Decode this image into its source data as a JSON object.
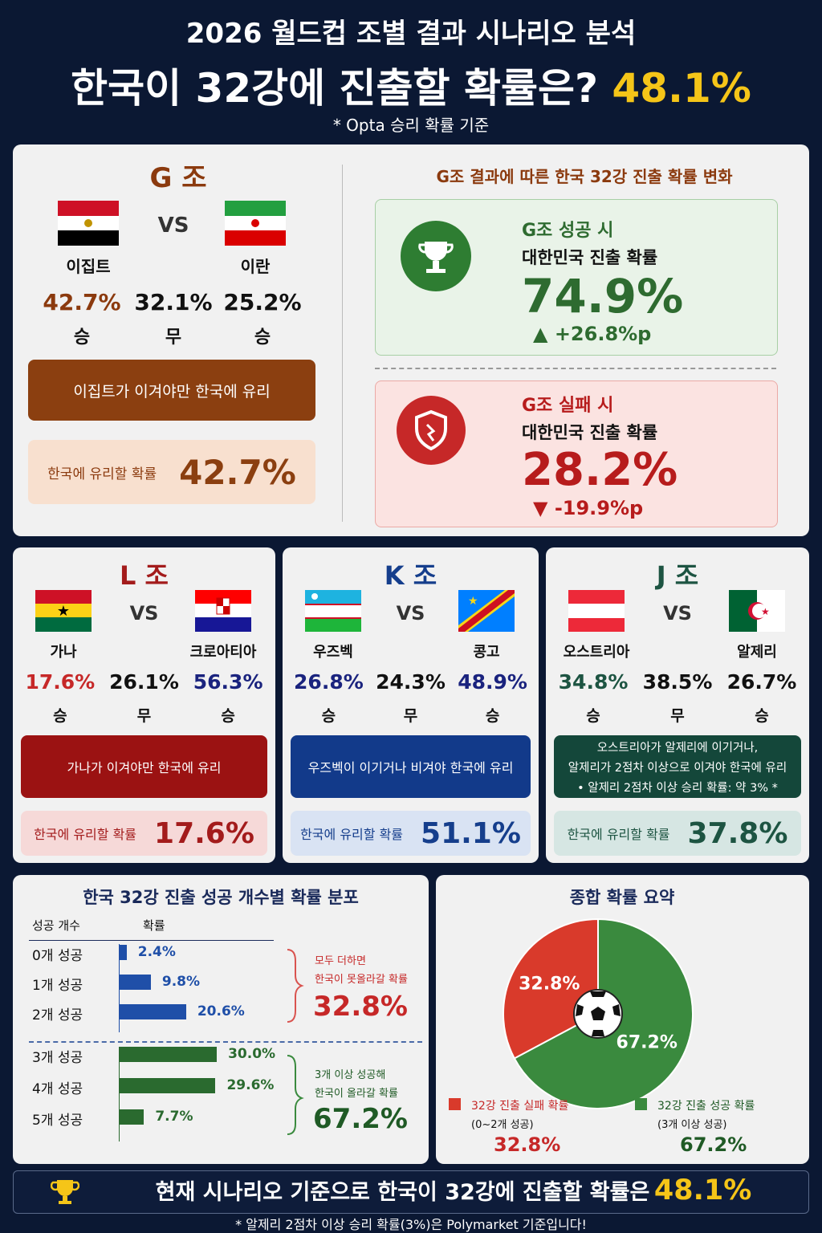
{
  "header": {
    "line1": "2026 월드컵 조별 결과 시나리오 분석",
    "line2": "한국이 32강에 진출할 확률은?",
    "line2_highlight": "48.1%",
    "note": "* Opta 승리 확률 기준"
  },
  "group_g": {
    "title": "G 조",
    "vs": "VS",
    "team1": "이집트",
    "team2": "이란",
    "odds": [
      {
        "pct": "42.7%",
        "result": "승"
      },
      {
        "pct": "32.1%",
        "result": "무"
      },
      {
        "pct": "25.2%",
        "result": "승"
      }
    ],
    "condition": "이집트가 이겨야만 한국에 유리",
    "favor_label": "한국에 유리할 확률",
    "favor_value": "42.7%"
  },
  "g_impact": {
    "title": "G조 결과에 따른 한국 32강 진출 확률 변화",
    "success": {
      "title": "G조 성공 시",
      "subtitle": "대한민국 진출 확률",
      "value": "74.9%",
      "delta": "+26.8%p"
    },
    "failure": {
      "title": "G조 실패 시",
      "subtitle": "대한민국 진출 확률",
      "value": "28.2%",
      "delta": "-19.9%p"
    }
  },
  "groups": [
    {
      "title": "L 조",
      "vs": "VS",
      "team1": "가나",
      "team2": "크로아티아",
      "odds": [
        {
          "pct": "17.6%",
          "result": "승"
        },
        {
          "pct": "26.1%",
          "result": "무"
        },
        {
          "pct": "56.3%",
          "result": "승"
        }
      ],
      "condition": [
        "가나가 이겨야만 한국에 유리"
      ],
      "favor_label": "한국에 유리할 확률",
      "favor_value": "17.6%"
    },
    {
      "title": "K 조",
      "vs": "VS",
      "team1": "우즈벡",
      "team2": "콩고",
      "odds": [
        {
          "pct": "26.8%",
          "result": "승"
        },
        {
          "pct": "24.3%",
          "result": "무"
        },
        {
          "pct": "48.9%",
          "result": "승"
        }
      ],
      "condition": [
        "우즈벡이 이기거나 비겨야 한국에 유리"
      ],
      "favor_label": "한국에 유리할 확률",
      "favor_value": "51.1%"
    },
    {
      "title": "J 조",
      "vs": "VS",
      "team1": "오스트리아",
      "team2": "알제리",
      "odds": [
        {
          "pct": "34.8%",
          "result": "승"
        },
        {
          "pct": "38.5%",
          "result": "무"
        },
        {
          "pct": "26.7%",
          "result": "승"
        }
      ],
      "condition": [
        "오스트리아가 알제리에 이기거나,",
        "알제리가 2점차 이상으로 이겨야 한국에 유리",
        "• 알제리 2점차 이상 승리 확률: 약 3% *"
      ],
      "favor_label": "한국에 유리할 확률",
      "favor_value": "37.8%"
    }
  ],
  "distribution": {
    "title": "한국 32강 진출 성공 개수별 확률 분포",
    "col1": "성공 개수",
    "col2": "확률",
    "rows": [
      {
        "label": "0개 성공",
        "value": 2.4,
        "value_label": "2.4%"
      },
      {
        "label": "1개 성공",
        "value": 9.8,
        "value_label": "9.8%"
      },
      {
        "label": "2개 성공",
        "value": 20.6,
        "value_label": "20.6%"
      },
      {
        "label": "3개 성공",
        "value": 30.0,
        "value_label": "30.0%"
      },
      {
        "label": "4개 성공",
        "value": 29.6,
        "value_label": "29.6%"
      },
      {
        "label": "5개 성공",
        "value": 7.7,
        "value_label": "7.7%"
      }
    ],
    "fail_note": {
      "line1": "모두 더하면",
      "line2": "한국이 못올라갈 확률",
      "value": "32.8%"
    },
    "success_note": {
      "line1": "3개 이상 성공해",
      "line2": "한국이 올라갈 확률",
      "value": "67.2%"
    }
  },
  "summary": {
    "title": "종합 확률 요약",
    "slices": [
      {
        "name": "32강 진출 실패 확률",
        "detail": "(0~2개 성공)",
        "value": 32.8,
        "label": "32.8%",
        "color": "#d93a2b"
      },
      {
        "name": "32강 진출 성공 확률",
        "detail": "(3개 이상 성공)",
        "value": 67.2,
        "label": "67.2%",
        "color": "#3a8a3e"
      }
    ]
  },
  "footer": {
    "text": "현재 시나리오 기준으로 한국이 32강에 진출할 확률은",
    "highlight": "48.1%",
    "note": "* 알제리 2점차 이상 승리 확률(3%)은 Polymarket 기준입니다!"
  }
}
